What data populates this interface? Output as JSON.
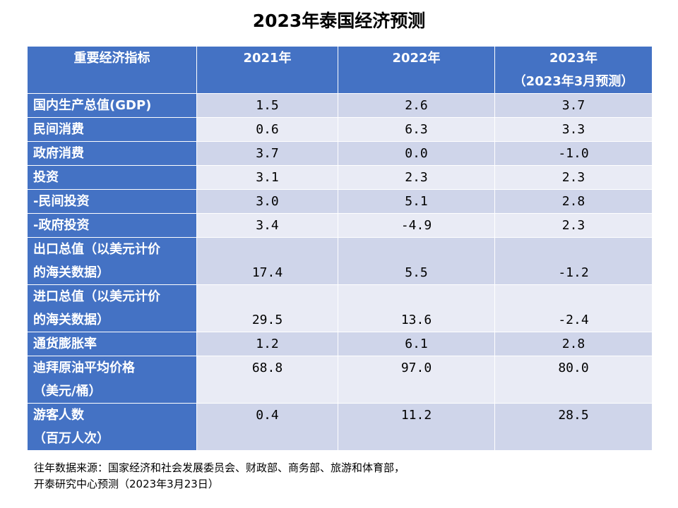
{
  "title": "2023年泰国经济预测",
  "colors": {
    "header_blue": "#4472c4",
    "row_odd": "#cfd5ea",
    "row_even": "#e9ebf5"
  },
  "chart_data": {
    "type": "table",
    "title": "2023年泰国经济预测",
    "columns": [
      {
        "lines": [
          "重要经济指标"
        ]
      },
      {
        "lines": [
          "2021年"
        ]
      },
      {
        "lines": [
          "2022年"
        ]
      },
      {
        "lines": [
          "2023年",
          "（2023年3月预测）"
        ]
      }
    ],
    "rows": [
      {
        "label": [
          "国内生产总值(GDP)"
        ],
        "values": [
          "1.5",
          "2.6",
          "3.7"
        ],
        "tall": false,
        "align": "middle"
      },
      {
        "label": [
          "民间消费"
        ],
        "values": [
          "0.6",
          "6.3",
          "3.3"
        ],
        "tall": false,
        "align": "middle"
      },
      {
        "label": [
          "政府消费"
        ],
        "values": [
          "3.7",
          "0.0",
          "-1.0"
        ],
        "tall": false,
        "align": "middle"
      },
      {
        "label": [
          "投资"
        ],
        "values": [
          "3.1",
          "2.3",
          "2.3"
        ],
        "tall": false,
        "align": "middle"
      },
      {
        "label": [
          "-民间投资"
        ],
        "values": [
          "3.0",
          "5.1",
          "2.8"
        ],
        "tall": false,
        "align": "middle"
      },
      {
        "label": [
          "-政府投资"
        ],
        "values": [
          "3.4",
          "-4.9",
          "2.3"
        ],
        "tall": false,
        "align": "middle"
      },
      {
        "label": [
          "出口总值（以美元计价",
          "的海关数据）"
        ],
        "values": [
          "17.4",
          "5.5",
          "-1.2"
        ],
        "tall": true,
        "align": "bottom"
      },
      {
        "label": [
          "进口总值（以美元计价",
          "的海关数据）"
        ],
        "values": [
          "29.5",
          "13.6",
          "-2.4"
        ],
        "tall": true,
        "align": "bottom"
      },
      {
        "label": [
          "通货膨胀率"
        ],
        "values": [
          "1.2",
          "6.1",
          "2.8"
        ],
        "tall": false,
        "align": "middle"
      },
      {
        "label": [
          "迪拜原油平均价格",
          "（美元/桶）"
        ],
        "values": [
          "68.8",
          "97.0",
          "80.0"
        ],
        "tall": true,
        "align": "top"
      },
      {
        "label": [
          "游客人数",
          "（百万人次）"
        ],
        "values": [
          "0.4",
          "11.2",
          "28.5"
        ],
        "tall": true,
        "align": "top"
      }
    ]
  },
  "source": {
    "lines": [
      "往年数据来源：国家经济和社会发展委员会、财政部、商务部、旅游和体育部，",
      "开泰研究中心预测（2023年3月23日）"
    ]
  }
}
